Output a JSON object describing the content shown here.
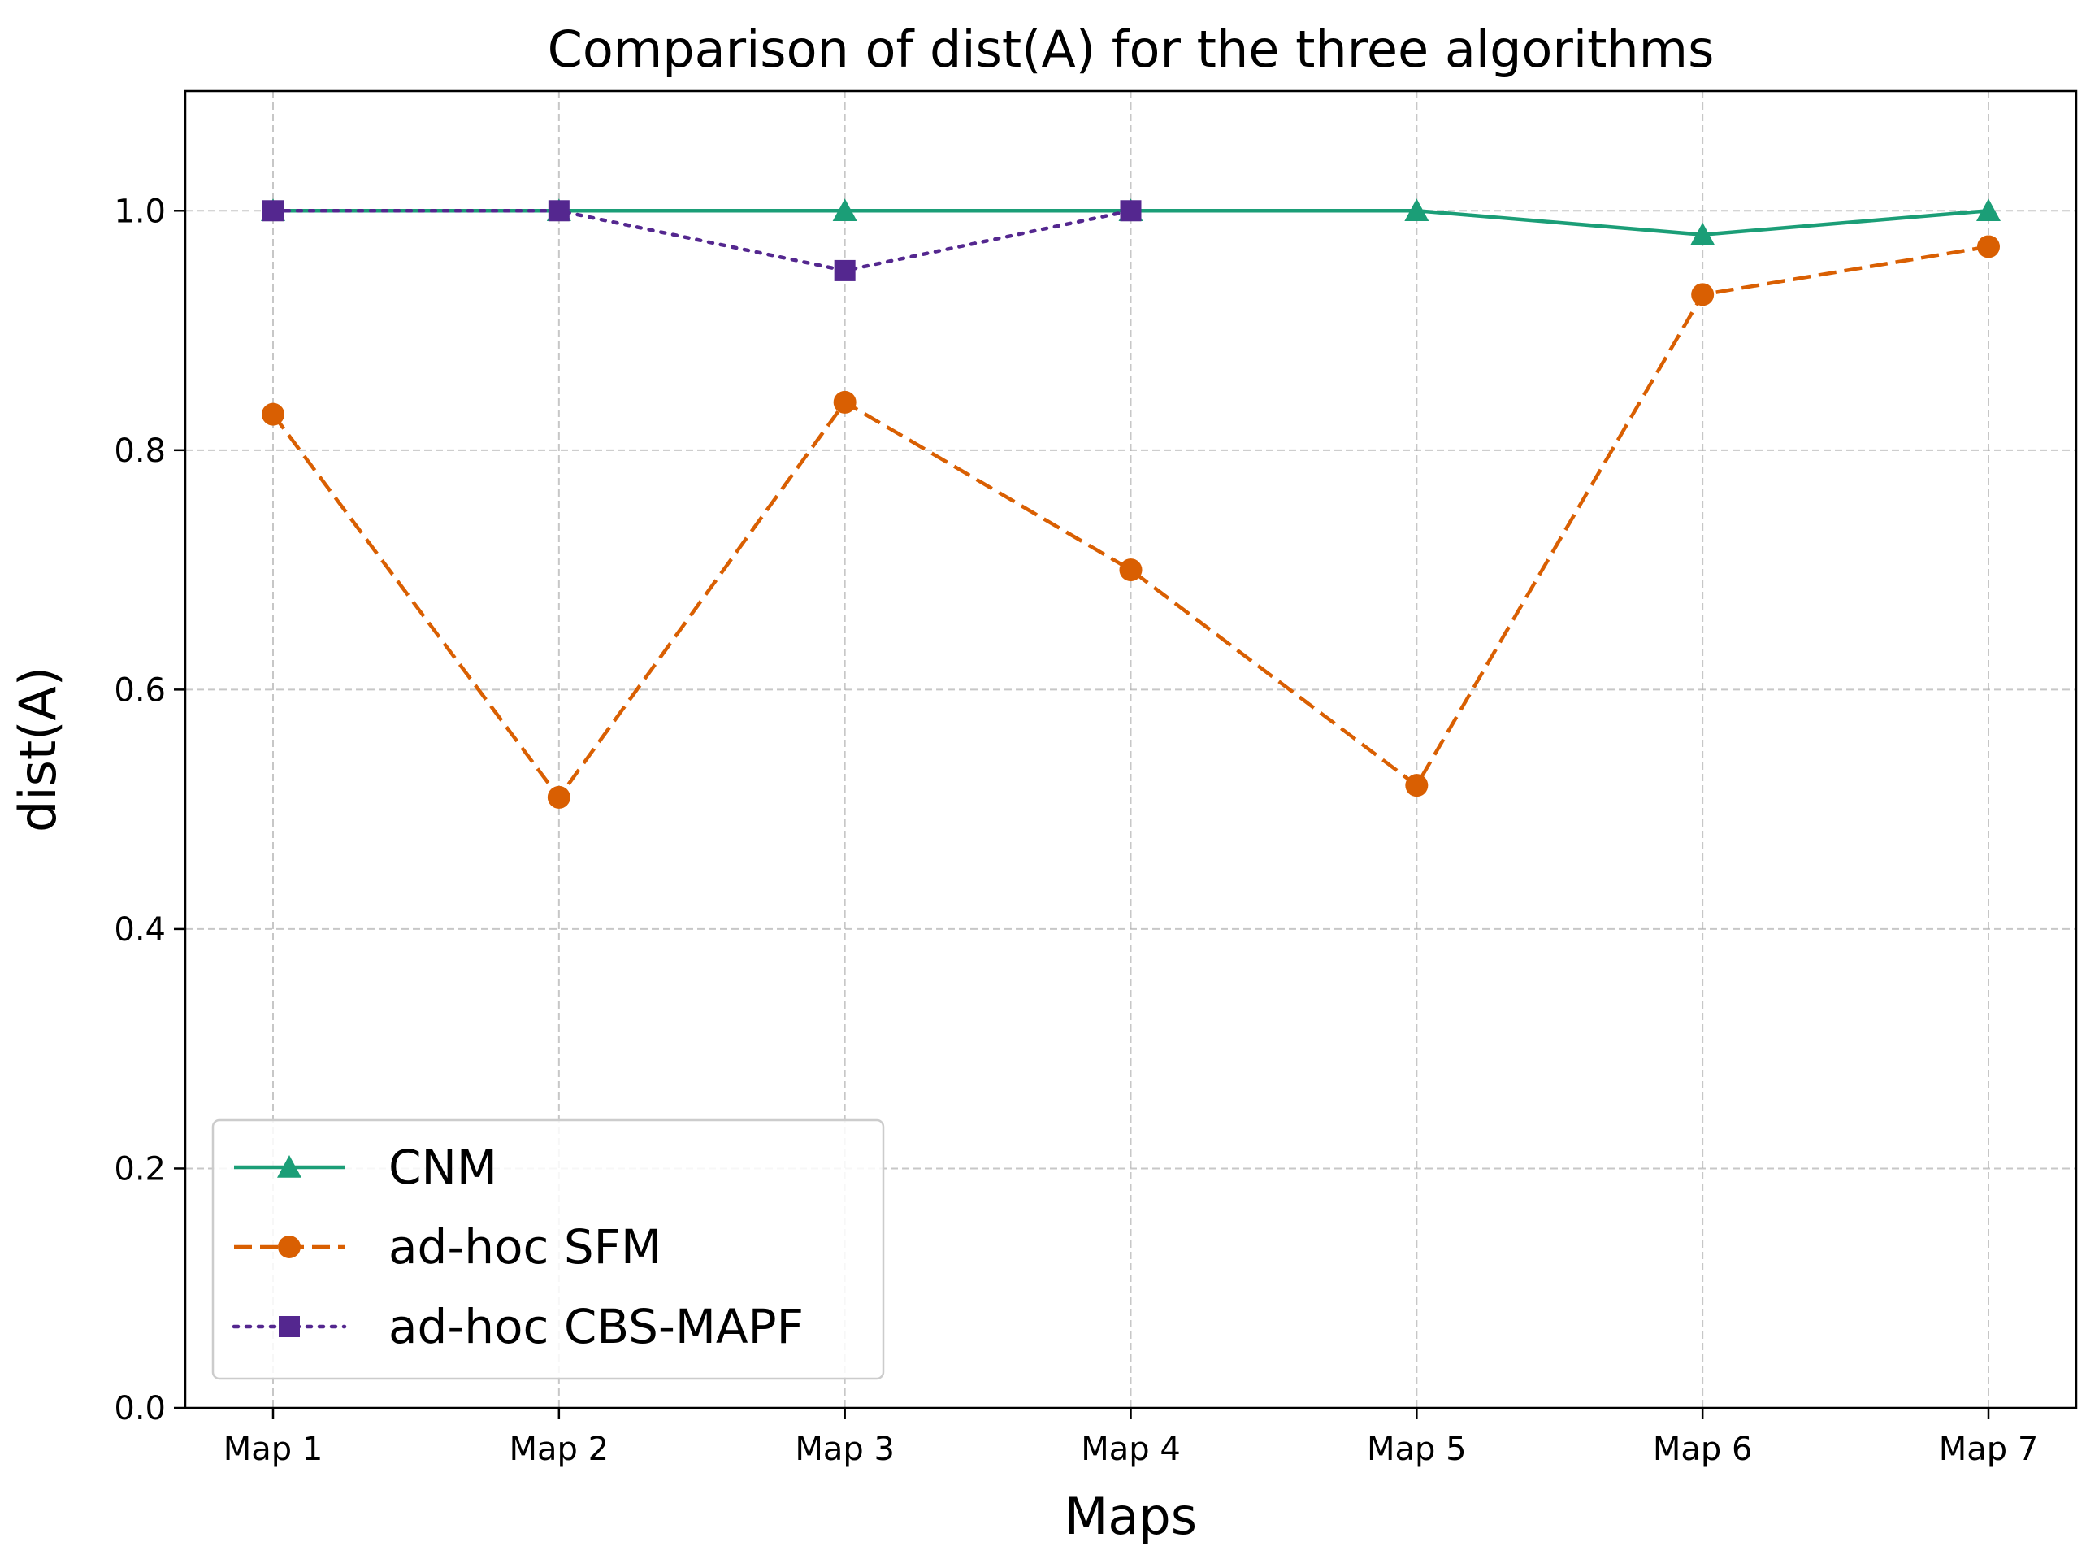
{
  "chart_data": {
    "type": "line",
    "title": "Comparison of dist(A) for the three algorithms",
    "xlabel": "Maps",
    "ylabel": "dist(A)",
    "categories": [
      "Map 1",
      "Map 2",
      "Map 3",
      "Map 4",
      "Map 5",
      "Map 6",
      "Map 7"
    ],
    "ylim": [
      0.0,
      1.1
    ],
    "yticks": [
      "0.0",
      "0.2",
      "0.4",
      "0.6",
      "0.8",
      "1.0"
    ],
    "grid": true,
    "legend_position": "lower-left",
    "series": [
      {
        "name": "CNM",
        "values": [
          1.0,
          1.0,
          1.0,
          1.0,
          1.0,
          0.98,
          1.0
        ],
        "color": "#1b9e77",
        "line_style": "solid",
        "marker": "triangle"
      },
      {
        "name": "ad-hoc SFM",
        "values": [
          0.83,
          0.51,
          0.84,
          0.7,
          0.52,
          0.93,
          0.97
        ],
        "color": "#d95f02",
        "line_style": "dashed",
        "marker": "circle"
      },
      {
        "name": "ad-hoc CBS-MAPF",
        "values": [
          1.0,
          1.0,
          0.95,
          1.0,
          null,
          null,
          null
        ],
        "color": "#54278f",
        "line_style": "dotted",
        "marker": "square"
      }
    ]
  }
}
